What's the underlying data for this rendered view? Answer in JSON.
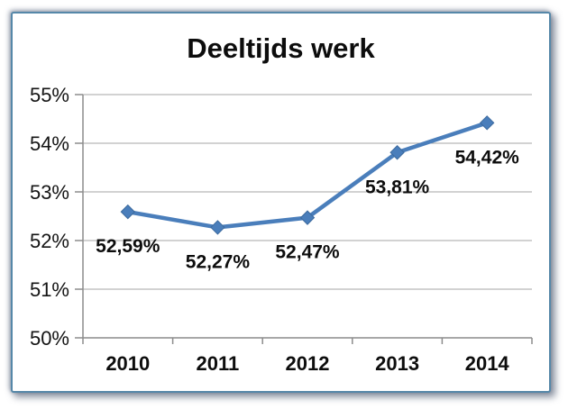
{
  "chart_data": {
    "type": "line",
    "title": "Deeltijds werk",
    "categories": [
      "2010",
      "2011",
      "2012",
      "2013",
      "2014"
    ],
    "series": [
      {
        "name": "Deeltijds werk",
        "values": [
          52.59,
          52.27,
          52.47,
          53.81,
          54.42
        ]
      }
    ],
    "data_labels": [
      "52,59%",
      "52,27%",
      "52,47%",
      "53,81%",
      "54,42%"
    ],
    "xlabel": "",
    "ylabel": "",
    "ylim": [
      50,
      55
    ],
    "ytick_step": 1,
    "ytick_labels": [
      "50%",
      "51%",
      "52%",
      "53%",
      "54%",
      "55%"
    ],
    "grid": true,
    "legend_position": "none",
    "marker": "diamond",
    "colors": {
      "line": "#4a7ebb",
      "marker_edge": "#3c6a9e",
      "gridline": "#a6a6a6",
      "axis": "#8c8c8c",
      "text": "#0d0d0d",
      "frame_border": "#5688a9",
      "background": "#ffffff"
    }
  }
}
